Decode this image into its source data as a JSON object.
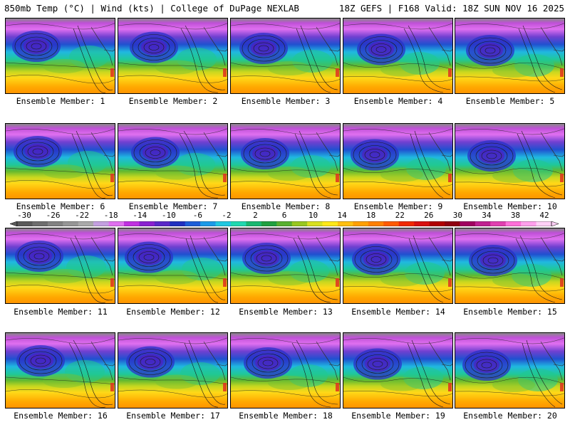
{
  "header": {
    "left": "850mb Temp (°C) | Wind (kts) | College of DuPage NEXLAB",
    "right": "18Z GEFS | F168 Valid: 18Z SUN NOV 16 2025"
  },
  "members": [
    "Ensemble Member: 1",
    "Ensemble Member: 2",
    "Ensemble Member: 3",
    "Ensemble Member: 4",
    "Ensemble Member: 5",
    "Ensemble Member: 6",
    "Ensemble Member: 7",
    "Ensemble Member: 8",
    "Ensemble Member: 9",
    "Ensemble Member: 10",
    "Ensemble Member: 11",
    "Ensemble Member: 12",
    "Ensemble Member: 13",
    "Ensemble Member: 14",
    "Ensemble Member: 15",
    "Ensemble Member: 16",
    "Ensemble Member: 17",
    "Ensemble Member: 18",
    "Ensemble Member: 19",
    "Ensemble Member: 20"
  ],
  "colorbar": {
    "labels": [
      "-30",
      "-26",
      "-22",
      "-18",
      "-14",
      "-10",
      "-6",
      "-2",
      "2",
      "6",
      "10",
      "14",
      "18",
      "22",
      "26",
      "30",
      "34",
      "38",
      "42"
    ],
    "colors": [
      "#5a5a5a",
      "#6e6e6e",
      "#828282",
      "#969696",
      "#aaaaaa",
      "#c4a0e0",
      "#e070f0",
      "#c030e0",
      "#8a20d0",
      "#5a28c8",
      "#2030c0",
      "#1d5ed8",
      "#1a9ae8",
      "#20c8e0",
      "#20d8b0",
      "#18b870",
      "#20a040",
      "#58b030",
      "#98c820",
      "#d8e020",
      "#ffe818",
      "#ffc010",
      "#ffa000",
      "#ff8000",
      "#ff5a00",
      "#f02800",
      "#d81010",
      "#b00000",
      "#900010",
      "#a00060",
      "#c02090",
      "#e040b0",
      "#ff70d8",
      "#ffa0ec",
      "#ffd0f6"
    ]
  }
}
